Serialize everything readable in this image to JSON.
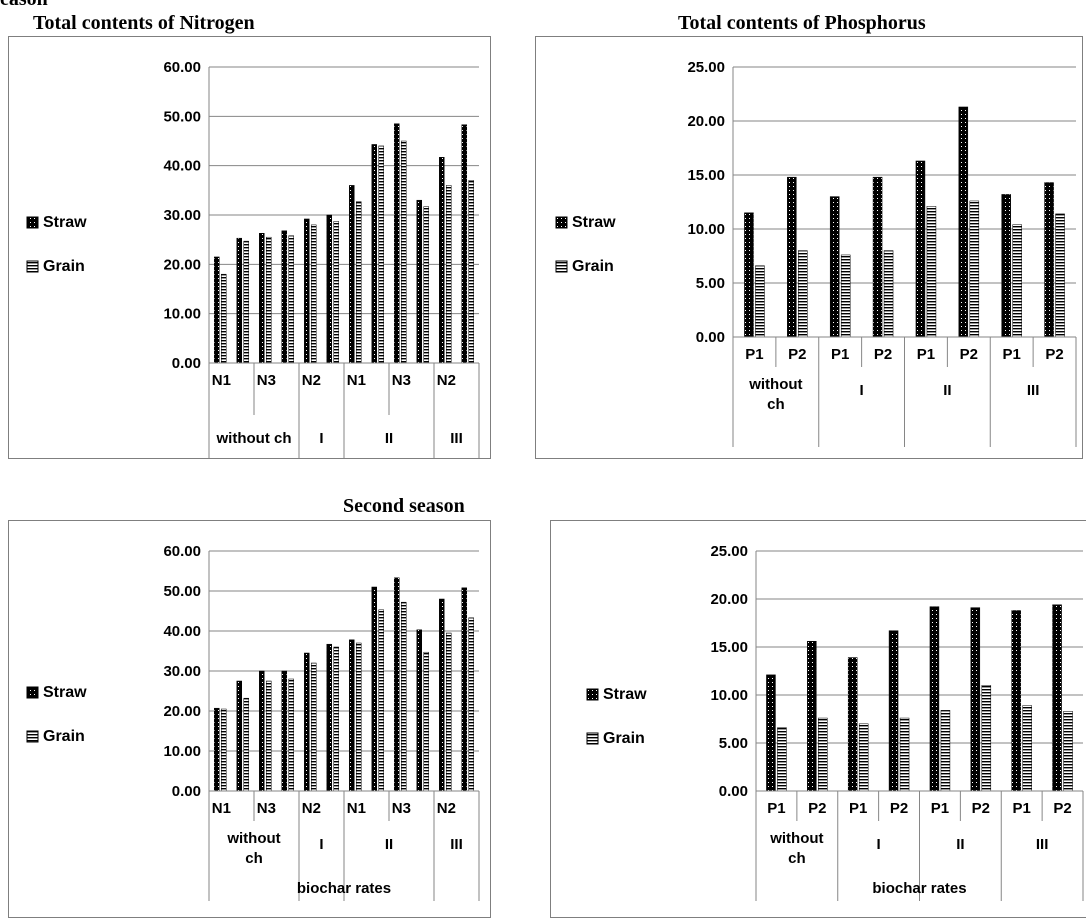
{
  "titles": {
    "top_left_clipped": "eason",
    "nitrogen": "Total contents of Nitrogen",
    "phosphorus": "Total contents of Phosphorus",
    "second_season": "Second season"
  },
  "colors": {
    "straw": "#000000",
    "grain": "#000000"
  },
  "chart_data": [
    {
      "type": "bar",
      "title": "Total contents of Nitrogen",
      "ylim": [
        0,
        60
      ],
      "yticks": [
        "0.00",
        "10.00",
        "20.00",
        "30.00",
        "40.00",
        "50.00",
        "60.00"
      ],
      "grid": true,
      "legend": "left",
      "series": [
        {
          "name": "Straw",
          "values": [
            21.5,
            25.3,
            26.3,
            26.8,
            29.2,
            30.0,
            36.0,
            44.3,
            48.5,
            33.0,
            41.7,
            48.3
          ]
        },
        {
          "name": "Grain",
          "values": [
            18.0,
            24.7,
            25.5,
            25.8,
            28.0,
            28.7,
            32.7,
            44.0,
            45.0,
            31.7,
            36.0,
            37.0
          ]
        }
      ],
      "tick_labels": [
        "N1",
        "N3",
        "N2",
        "N1",
        "N3",
        "N2"
      ],
      "groups": [
        {
          "label": "without ch"
        },
        {
          "label": "I"
        },
        {
          "label": "II"
        },
        {
          "label": "III"
        }
      ],
      "xlabel": ""
    },
    {
      "type": "bar",
      "title": "Total contents of Phosphorus",
      "ylim": [
        0,
        25
      ],
      "yticks": [
        "0.00",
        "5.00",
        "10.00",
        "15.00",
        "20.00",
        "25.00"
      ],
      "grid": true,
      "legend": "left",
      "series": [
        {
          "name": "Straw",
          "values": [
            11.5,
            14.8,
            13.0,
            14.8,
            16.3,
            21.3,
            13.2,
            14.3
          ]
        },
        {
          "name": "Grain",
          "values": [
            6.6,
            8.0,
            7.6,
            8.0,
            12.1,
            12.6,
            10.4,
            11.4
          ]
        }
      ],
      "tick_labels": [
        "P1",
        "P2",
        "P1",
        "P2",
        "P1",
        "P2",
        "P1",
        "P2"
      ],
      "groups": [
        {
          "label": "without ch"
        },
        {
          "label": "I"
        },
        {
          "label": "II"
        },
        {
          "label": "III"
        }
      ],
      "xlabel": ""
    },
    {
      "type": "bar",
      "title": "Second season",
      "ylim": [
        0,
        60
      ],
      "yticks": [
        "0.00",
        "10.00",
        "20.00",
        "30.00",
        "40.00",
        "50.00",
        "60.00"
      ],
      "grid": true,
      "legend": "left",
      "series": [
        {
          "name": "Straw",
          "values": [
            20.7,
            27.5,
            30.0,
            30.0,
            34.5,
            36.7,
            37.8,
            51.0,
            53.3,
            40.3,
            48.0,
            50.8
          ]
        },
        {
          "name": "Grain",
          "values": [
            20.5,
            23.2,
            27.5,
            28.0,
            32.0,
            36.0,
            37.0,
            45.3,
            47.2,
            34.7,
            39.5,
            43.3
          ]
        }
      ],
      "tick_labels": [
        "N1",
        "N3",
        "N2",
        "N1",
        "N3",
        "N2"
      ],
      "groups": [
        {
          "label": "without ch"
        },
        {
          "label": "I"
        },
        {
          "label": "II"
        },
        {
          "label": "III"
        }
      ],
      "xlabel": "biochar rates"
    },
    {
      "type": "bar",
      "title": "",
      "ylim": [
        0,
        25
      ],
      "yticks": [
        "0.00",
        "5.00",
        "10.00",
        "15.00",
        "20.00",
        "25.00"
      ],
      "grid": true,
      "legend": "left",
      "series": [
        {
          "name": "Straw",
          "values": [
            12.1,
            15.6,
            13.9,
            16.7,
            19.2,
            19.1,
            18.8,
            19.4
          ]
        },
        {
          "name": "Grain",
          "values": [
            6.6,
            7.6,
            7.0,
            7.6,
            8.4,
            11.0,
            8.9,
            8.3
          ]
        }
      ],
      "tick_labels": [
        "P1",
        "P2",
        "P1",
        "P2",
        "P1",
        "P2",
        "P1",
        "P2"
      ],
      "groups": [
        {
          "label": "without ch"
        },
        {
          "label": "I"
        },
        {
          "label": "II"
        },
        {
          "label": "III"
        }
      ],
      "xlabel": "biochar rates"
    }
  ]
}
